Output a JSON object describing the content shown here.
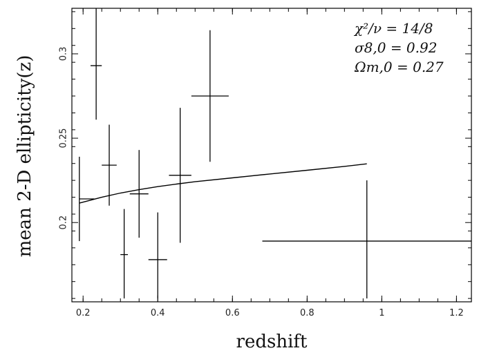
{
  "chart_data": {
    "type": "scatter",
    "xlabel": "redshift",
    "ylabel": "mean 2-D ellipticity(z)",
    "xlim": [
      0.17,
      1.24
    ],
    "ylim": [
      0.153,
      0.327
    ],
    "x_ticks": [
      0.2,
      0.4,
      0.6,
      0.8,
      1,
      1.2
    ],
    "x_tick_labels": [
      "0.2",
      "0.4",
      "0.6",
      "0.8",
      "1",
      "1.2"
    ],
    "y_ticks": [
      0.2,
      0.25,
      0.3
    ],
    "y_tick_labels": [
      "0.2",
      "0.25",
      "0.3"
    ],
    "grid": false,
    "annotations": [
      "χ²/ν = 14/8",
      "σ8,0 = 0.92",
      "Ωm,0 = 0.27"
    ],
    "points": [
      {
        "x": 0.19,
        "y": 0.214,
        "xerr": [
          0.19,
          0.23
        ],
        "yerr": [
          0.189,
          0.239
        ]
      },
      {
        "x": 0.235,
        "y": 0.293,
        "xerr": [
          0.22,
          0.25
        ],
        "yerr": [
          0.261,
          0.327
        ]
      },
      {
        "x": 0.27,
        "y": 0.234,
        "xerr": [
          0.25,
          0.29
        ],
        "yerr": [
          0.21,
          0.258
        ]
      },
      {
        "x": 0.31,
        "y": 0.181,
        "xerr": [
          0.3,
          0.32
        ],
        "yerr": [
          0.155,
          0.208
        ]
      },
      {
        "x": 0.35,
        "y": 0.217,
        "xerr": [
          0.325,
          0.375
        ],
        "yerr": [
          0.191,
          0.243
        ]
      },
      {
        "x": 0.4,
        "y": 0.178,
        "xerr": [
          0.375,
          0.425
        ],
        "yerr": [
          0.155,
          0.206
        ]
      },
      {
        "x": 0.46,
        "y": 0.228,
        "xerr": [
          0.43,
          0.49
        ],
        "yerr": [
          0.188,
          0.268
        ]
      },
      {
        "x": 0.54,
        "y": 0.275,
        "xerr": [
          0.49,
          0.59
        ],
        "yerr": [
          0.236,
          0.314
        ]
      },
      {
        "x": 0.96,
        "y": 0.189,
        "xerr": [
          0.68,
          1.24
        ],
        "yerr": [
          0.155,
          0.225
        ]
      }
    ],
    "model_curve": {
      "x": [
        0.19,
        0.25,
        0.3,
        0.35,
        0.4,
        0.45,
        0.5,
        0.6,
        0.7,
        0.8,
        0.9,
        0.96
      ],
      "y": [
        0.2115,
        0.215,
        0.2175,
        0.2195,
        0.2213,
        0.2228,
        0.2242,
        0.2265,
        0.2288,
        0.231,
        0.2333,
        0.2348
      ]
    }
  }
}
